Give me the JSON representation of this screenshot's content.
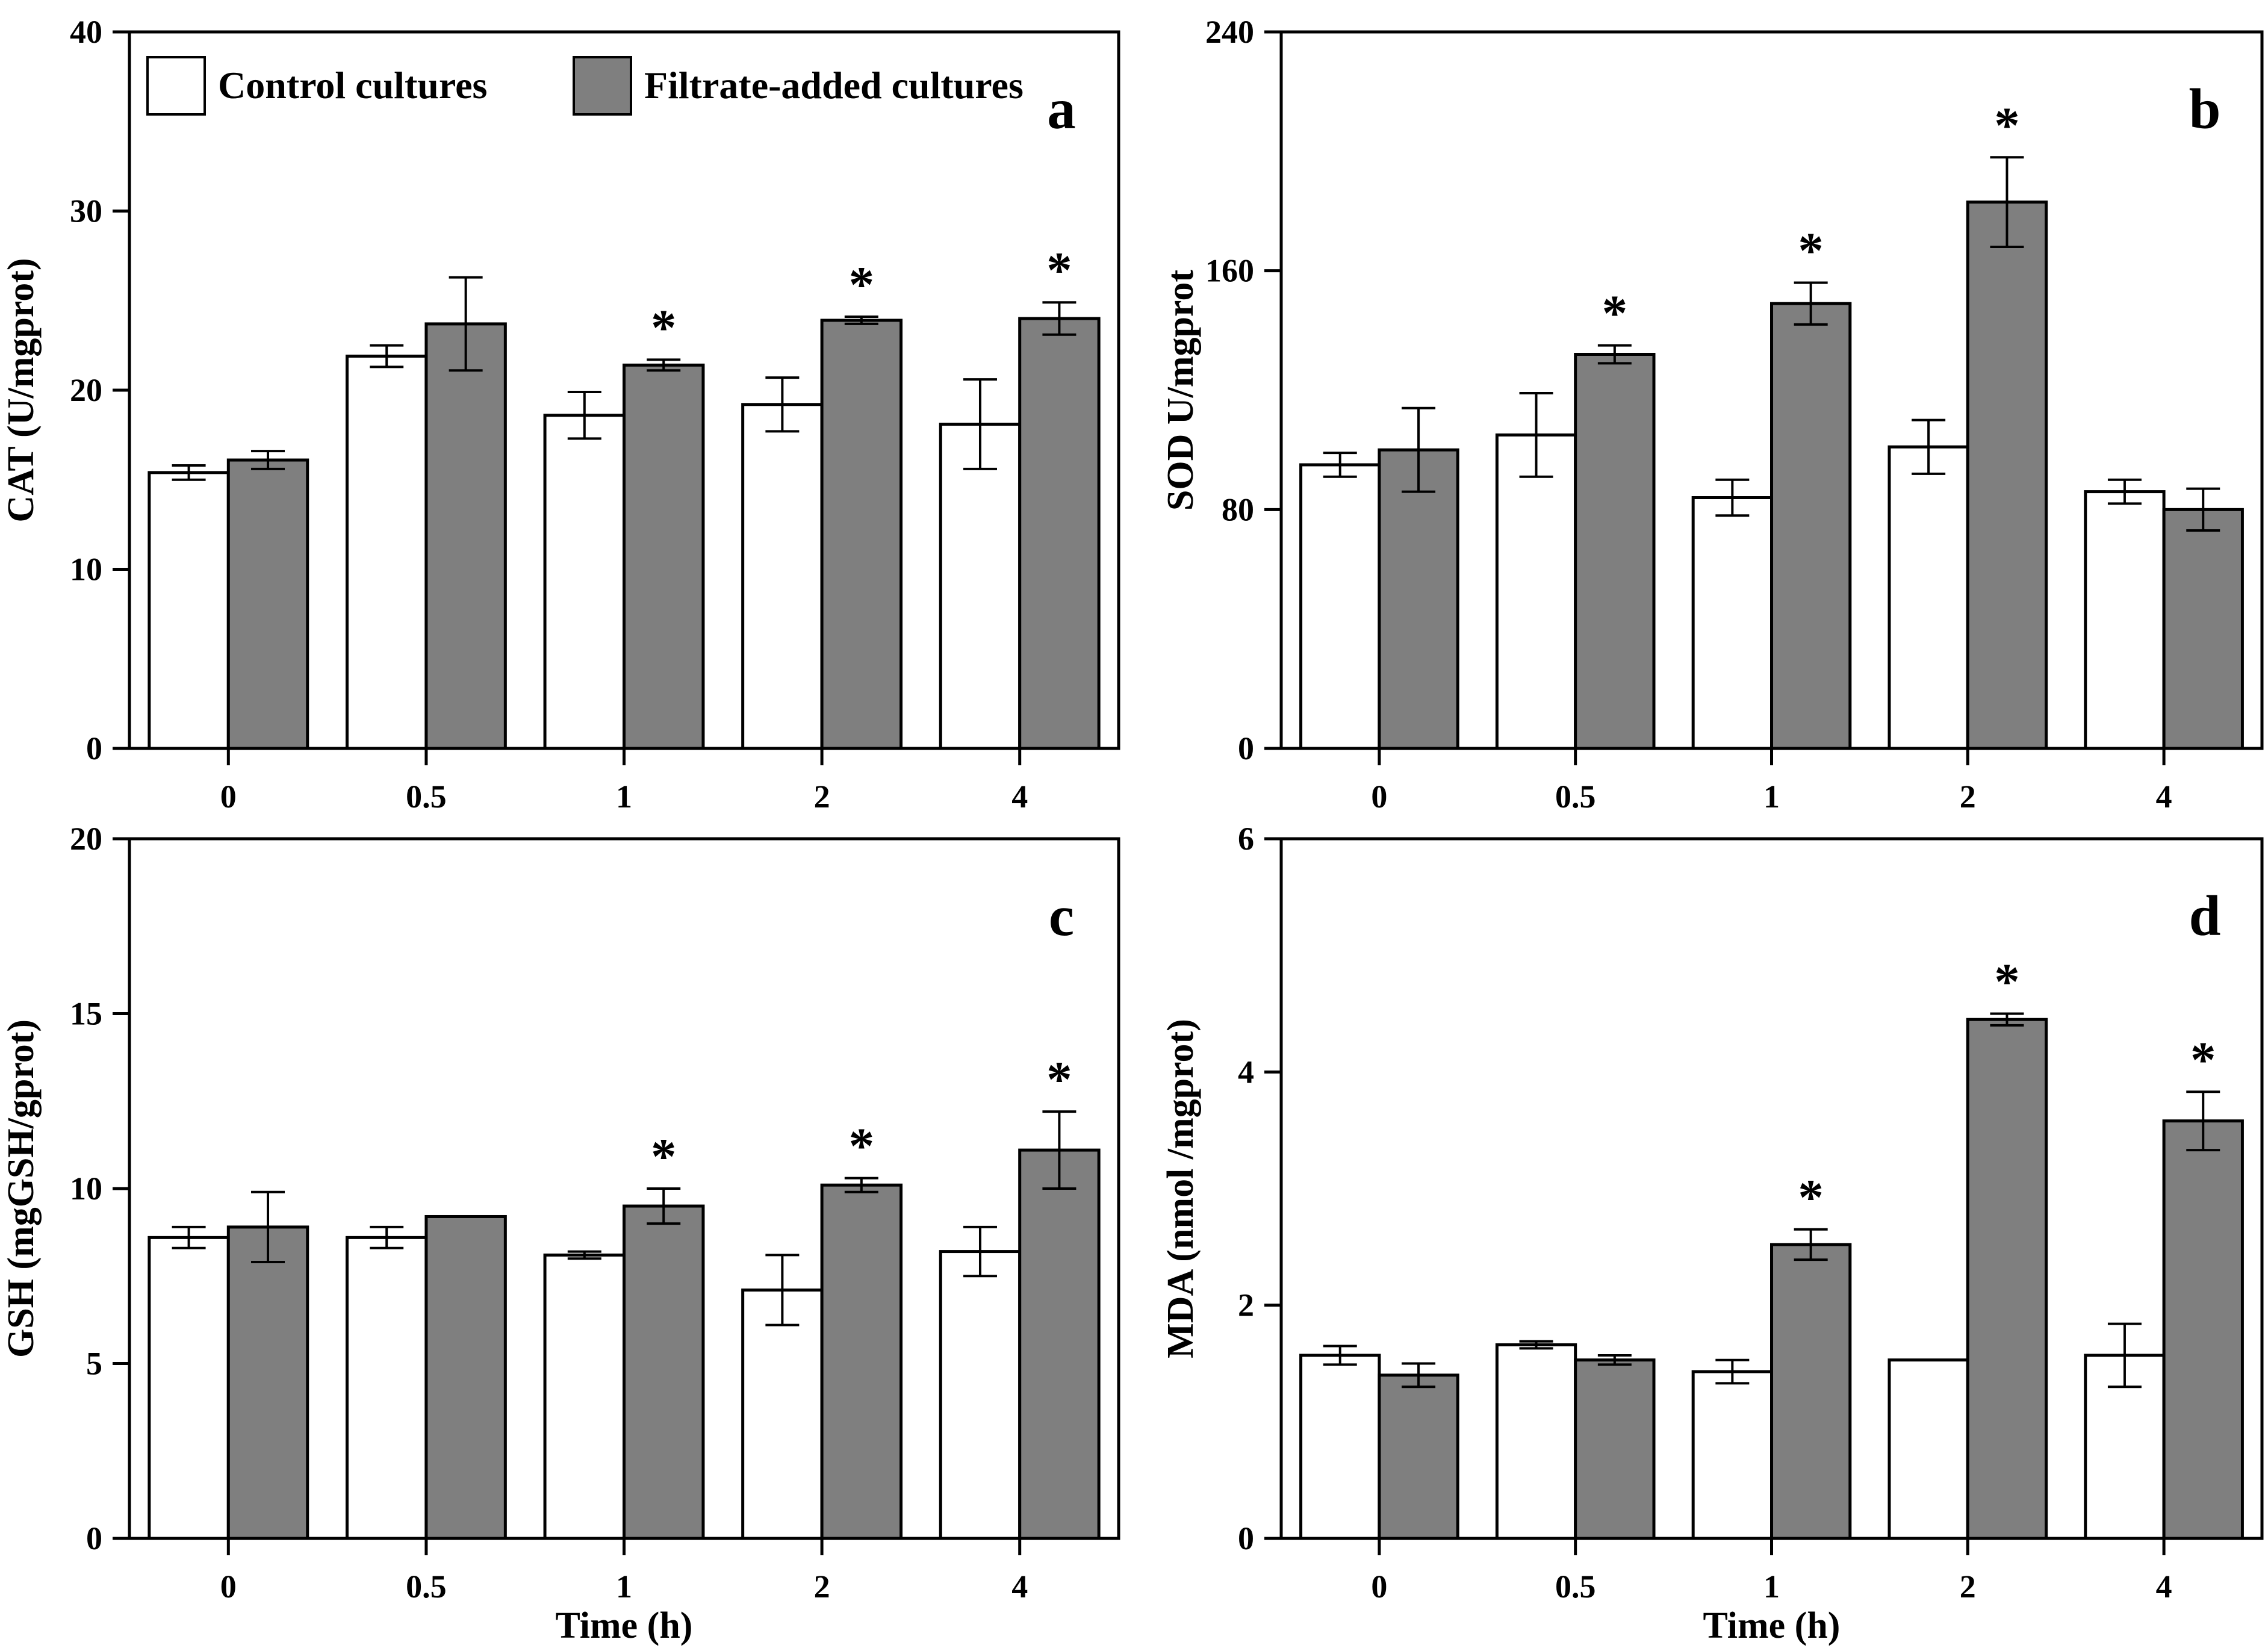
{
  "figure": {
    "background": "#ffffff",
    "stroke_color": "#000000",
    "legend": {
      "items": [
        {
          "label": "Control cultures",
          "fill": "#ffffff"
        },
        {
          "label": "Filtrate-added cultures",
          "fill": "#7f7f7f"
        }
      ]
    },
    "significance_marker": "*"
  },
  "chart_data": [
    {
      "panel": "a",
      "type": "bar",
      "title": "",
      "ylabel": "CAT (U/mgprot)",
      "xlabel": "",
      "ylim": [
        0,
        40
      ],
      "yticks": [
        0,
        10,
        20,
        30,
        40
      ],
      "categories": [
        "0",
        "0.5",
        "1",
        "2",
        "4"
      ],
      "legend_position": "top-left-inside",
      "grid": false,
      "series": [
        {
          "name": "Control cultures",
          "fill": "#ffffff",
          "values": [
            15.4,
            21.9,
            18.6,
            19.2,
            18.1
          ],
          "errors": [
            0.4,
            0.6,
            1.3,
            1.5,
            2.5
          ],
          "significant": [
            false,
            false,
            false,
            false,
            false
          ]
        },
        {
          "name": "Filtrate-added cultures",
          "fill": "#7f7f7f",
          "values": [
            16.1,
            23.7,
            21.4,
            23.9,
            24.0
          ],
          "errors": [
            0.5,
            2.6,
            0.3,
            0.2,
            0.9
          ],
          "significant": [
            false,
            false,
            true,
            true,
            true
          ]
        }
      ]
    },
    {
      "panel": "b",
      "type": "bar",
      "title": "",
      "ylabel": "SOD U/mgprot",
      "xlabel": "",
      "ylim": [
        0,
        240
      ],
      "yticks": [
        0,
        80,
        160,
        240
      ],
      "categories": [
        "0",
        "0.5",
        "1",
        "2",
        "4"
      ],
      "grid": false,
      "series": [
        {
          "name": "Control cultures",
          "fill": "#ffffff",
          "values": [
            95,
            105,
            84,
            101,
            86
          ],
          "errors": [
            4,
            14,
            6,
            9,
            4
          ],
          "significant": [
            false,
            false,
            false,
            false,
            false
          ]
        },
        {
          "name": "Filtrate-added cultures",
          "fill": "#7f7f7f",
          "values": [
            100,
            132,
            149,
            183,
            80
          ],
          "errors": [
            14,
            3,
            7,
            15,
            7
          ],
          "significant": [
            false,
            true,
            true,
            true,
            false
          ]
        }
      ]
    },
    {
      "panel": "c",
      "type": "bar",
      "title": "",
      "ylabel": "GSH (mgGSH/gprot)",
      "xlabel": "Time (h)",
      "ylim": [
        0,
        20
      ],
      "yticks": [
        0,
        5,
        10,
        15,
        20
      ],
      "categories": [
        "0",
        "0.5",
        "1",
        "2",
        "4"
      ],
      "grid": false,
      "series": [
        {
          "name": "Control cultures",
          "fill": "#ffffff",
          "values": [
            8.6,
            8.6,
            8.1,
            7.1,
            8.2
          ],
          "errors": [
            0.3,
            0.3,
            0.1,
            1.0,
            0.7
          ],
          "significant": [
            false,
            false,
            false,
            false,
            false
          ]
        },
        {
          "name": "Filtrate-added cultures",
          "fill": "#7f7f7f",
          "values": [
            8.9,
            9.2,
            9.5,
            10.1,
            11.1
          ],
          "errors": [
            1.0,
            0.0,
            0.5,
            0.2,
            1.1
          ],
          "significant": [
            false,
            false,
            true,
            true,
            true
          ]
        }
      ]
    },
    {
      "panel": "d",
      "type": "bar",
      "title": "",
      "ylabel": "MDA (nmol /mgprot)",
      "xlabel": "Time (h)",
      "ylim": [
        0,
        6
      ],
      "yticks": [
        0,
        2,
        4,
        6
      ],
      "categories": [
        "0",
        "0.5",
        "1",
        "2",
        "4"
      ],
      "grid": false,
      "series": [
        {
          "name": "Control cultures",
          "fill": "#ffffff",
          "values": [
            1.57,
            1.66,
            1.43,
            1.53,
            1.57
          ],
          "errors": [
            0.08,
            0.03,
            0.1,
            0.0,
            0.27
          ],
          "significant": [
            false,
            false,
            false,
            false,
            false
          ]
        },
        {
          "name": "Filtrate-added cultures",
          "fill": "#7f7f7f",
          "values": [
            1.4,
            1.53,
            2.52,
            4.45,
            3.58
          ],
          "errors": [
            0.1,
            0.04,
            0.13,
            0.05,
            0.25
          ],
          "significant": [
            false,
            false,
            true,
            true,
            true
          ]
        }
      ]
    }
  ]
}
